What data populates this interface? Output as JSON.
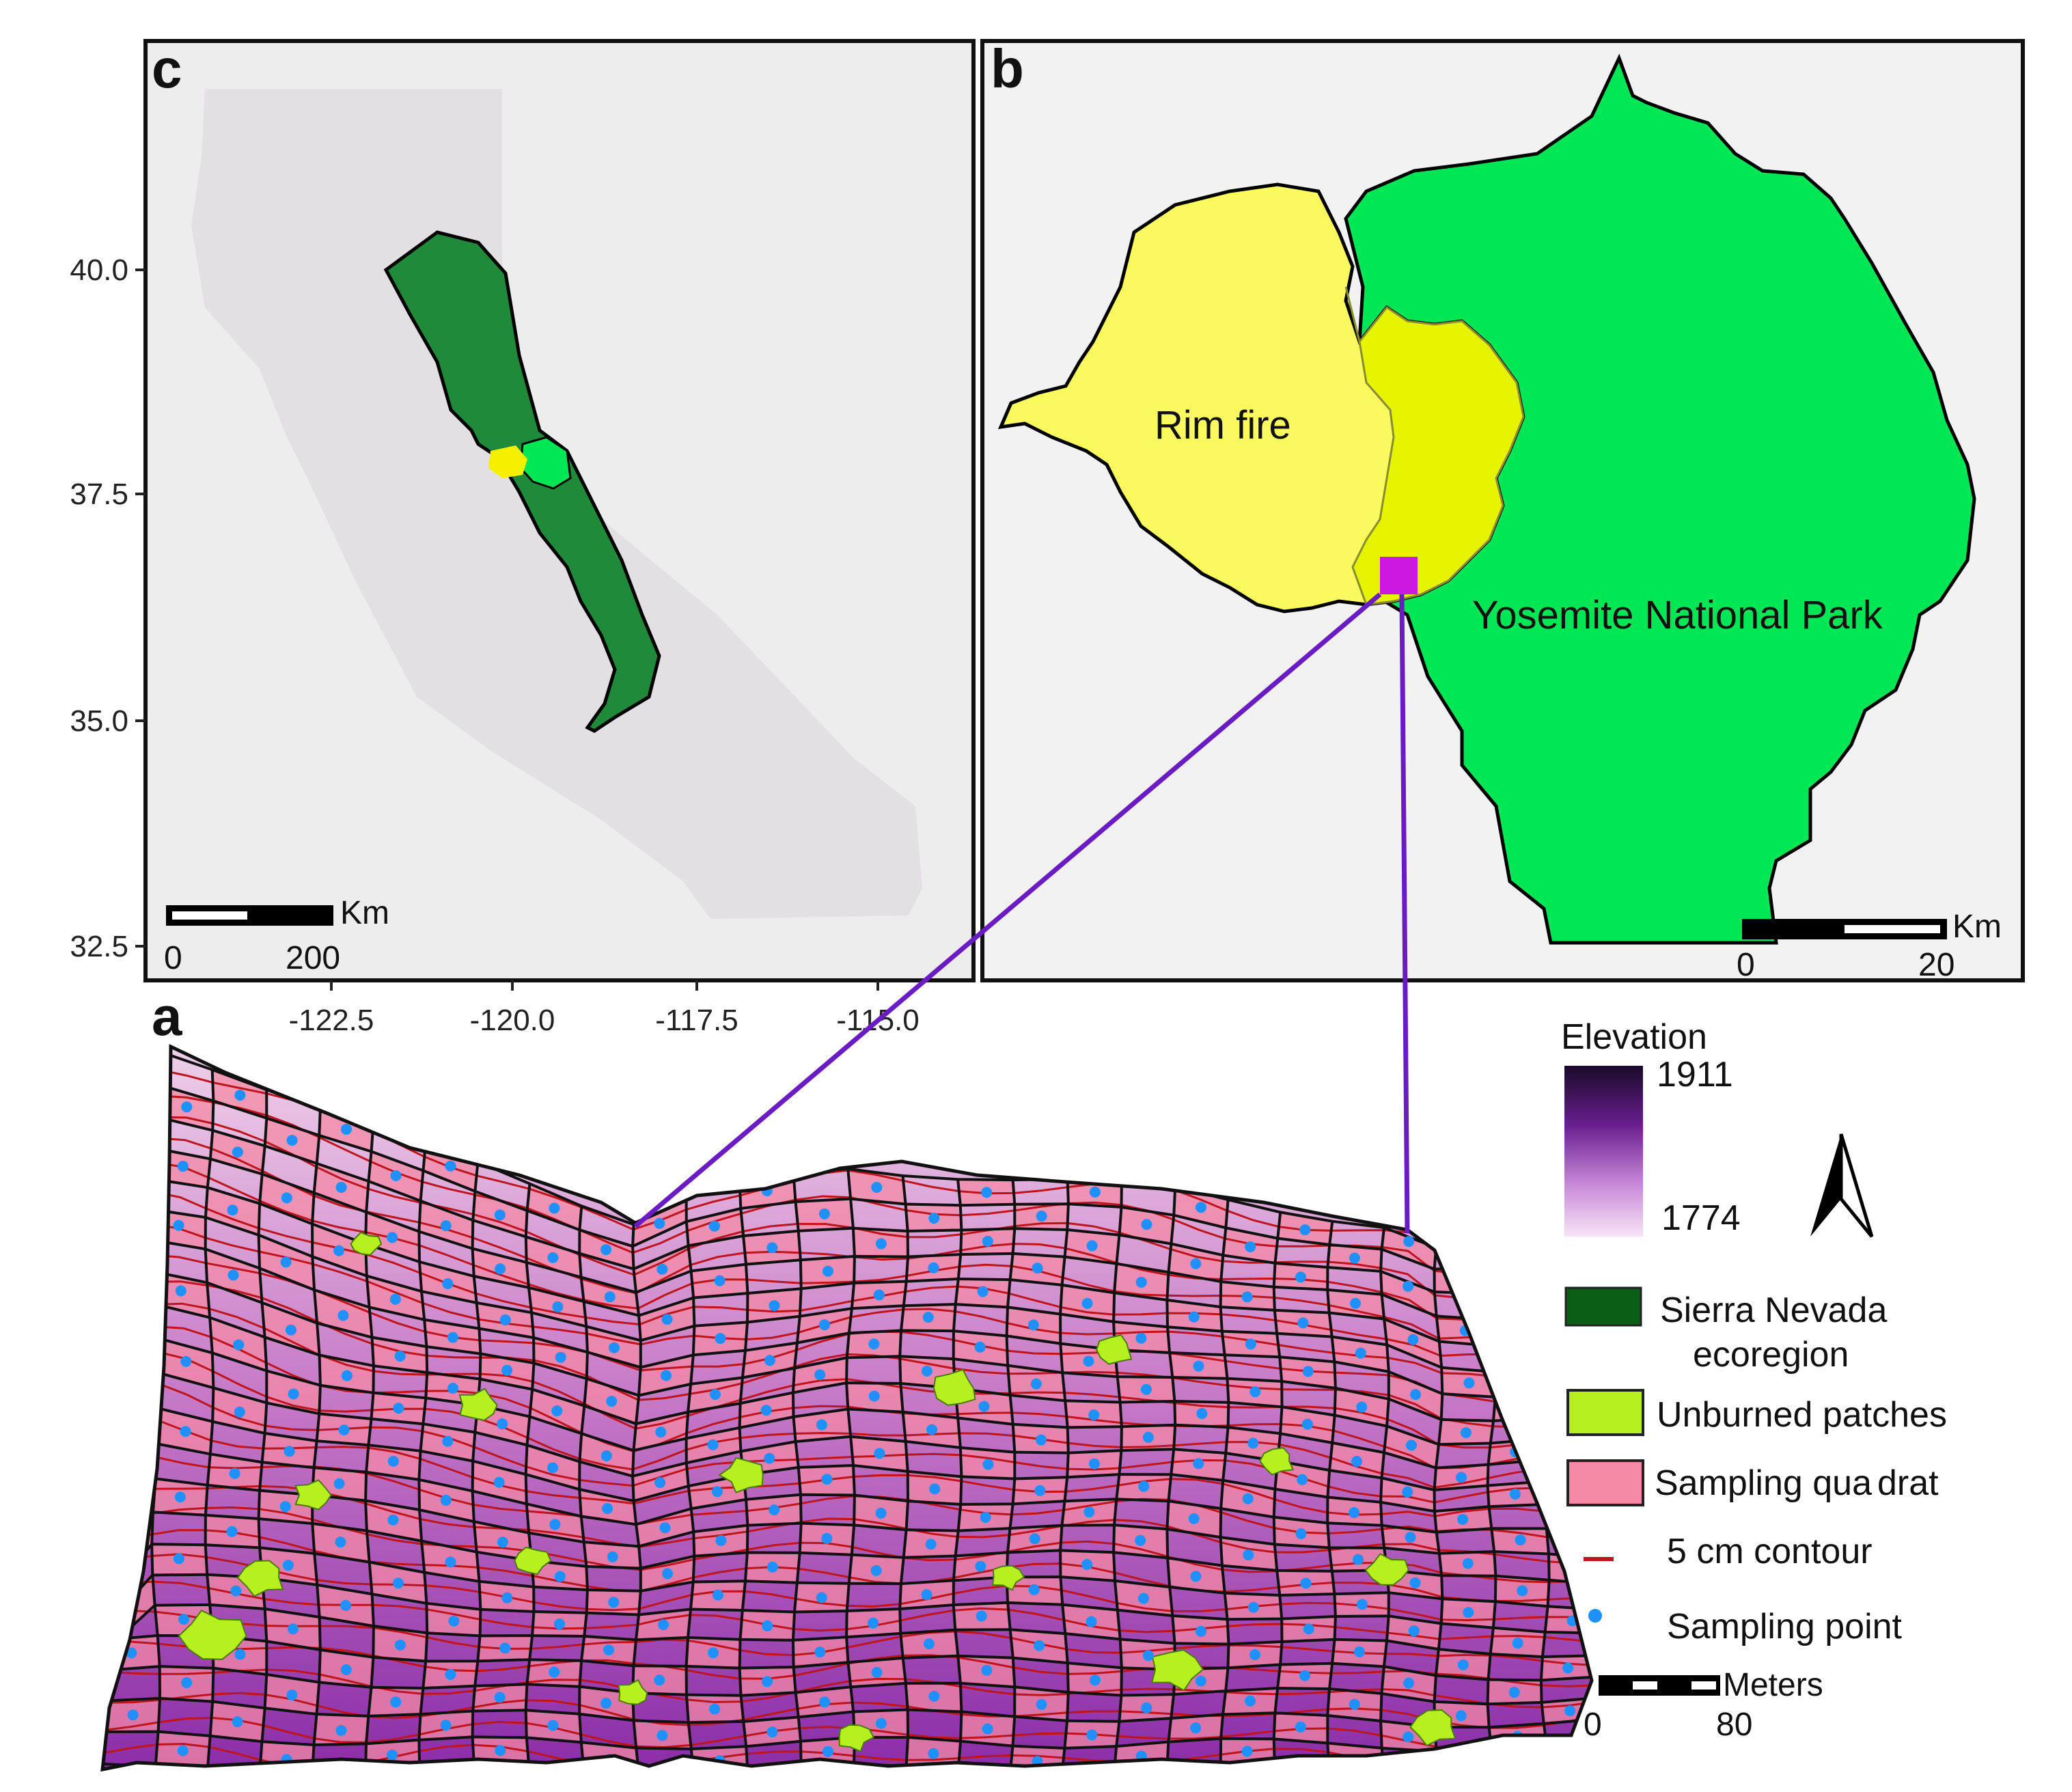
{
  "panels": {
    "a": {
      "letter": "a"
    },
    "b": {
      "letter": "b",
      "labels": {
        "rim_fire": "Rim fire",
        "yosemite": "Yosemite National Park"
      },
      "scale": {
        "unit": "Km",
        "min": "0",
        "max": "20"
      }
    },
    "c": {
      "letter": "c",
      "y_ticks": [
        "40.0",
        "37.5",
        "35.0",
        "32.5"
      ],
      "x_ticks": [
        "-122.5",
        "-120.0",
        "-117.5",
        "-115.0"
      ],
      "scale": {
        "unit": "Km",
        "min": "0",
        "max": "200"
      }
    }
  },
  "legend": {
    "elevation": {
      "title": "Elevation",
      "max": "1911",
      "min": "1774"
    },
    "items": [
      {
        "line1": "Sierra Nevada",
        "line2": "ecoregion"
      },
      {
        "line1": "Unburned patches"
      },
      {
        "line1": "Sampling qua",
        "line1b": "drat"
      },
      {
        "line1": "5 cm contour"
      },
      {
        "line1": "Sampling point"
      }
    ],
    "scale": {
      "unit": "Meters",
      "min": "0",
      "max": "80"
    }
  },
  "colors": {
    "sierra_nevada": "#1f8a3a",
    "yosemite": "#00e756",
    "rim_fire": "#fafa5e",
    "overlap": "#e6f400",
    "unburned": "#b6f01e",
    "quadrat": "#f48aa6",
    "contour": "#c0141c",
    "sampling_point": "#1e90ff",
    "study_site": "#cc18e0",
    "connector": "#6a1bc4",
    "elevation_high": "#1a0a2a",
    "elevation_low": "#f7e4f7"
  }
}
